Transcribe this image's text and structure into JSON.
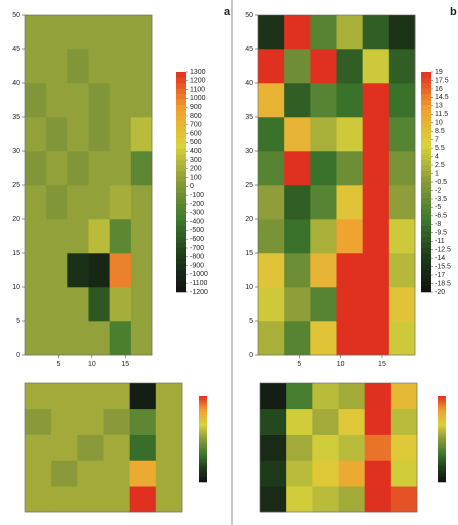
{
  "chart_data": [
    {
      "type": "heatmap",
      "label": "a",
      "xlim": [
        0,
        19
      ],
      "ylim": [
        0,
        50
      ],
      "xticks": [
        5,
        10,
        15
      ],
      "yticks": [
        0,
        5,
        10,
        15,
        20,
        25,
        30,
        35,
        40,
        45,
        50
      ],
      "zlim": [
        -1200,
        1300
      ],
      "zticks": [
        1300,
        1200,
        1100,
        1000,
        900,
        800,
        700,
        600,
        500,
        400,
        300,
        200,
        100,
        0,
        -100,
        -200,
        -300,
        -400,
        -500,
        -600,
        -700,
        -800,
        -900,
        -1000,
        -1100,
        -1200
      ],
      "colorscale": [
        "#111111",
        "#1f3d1a",
        "#3f7a2e",
        "#8a9a3a",
        "#d9d23a",
        "#f0a030",
        "#e03020"
      ],
      "z": [
        [
          100,
          100,
          100,
          100,
          -300,
          100
        ],
        [
          100,
          100,
          100,
          -600,
          200,
          100
        ],
        [
          100,
          100,
          -900,
          -1000,
          1000,
          100
        ],
        [
          100,
          100,
          100,
          300,
          -200,
          100
        ],
        [
          100,
          0,
          100,
          100,
          200,
          100
        ],
        [
          0,
          100,
          0,
          100,
          100,
          -200
        ],
        [
          100,
          0,
          100,
          0,
          100,
          300
        ],
        [
          0,
          100,
          100,
          0,
          100,
          100
        ],
        [
          100,
          100,
          0,
          100,
          100,
          100
        ],
        [
          100,
          100,
          100,
          100,
          100,
          100
        ]
      ]
    },
    {
      "type": "heatmap",
      "label": "b",
      "xlim": [
        0,
        19
      ],
      "ylim": [
        0,
        50
      ],
      "xticks": [
        5,
        10,
        15
      ],
      "yticks": [
        0,
        5,
        10,
        15,
        20,
        25,
        30,
        35,
        40,
        45,
        50
      ],
      "zlim": [
        -20,
        19
      ],
      "zticks": [
        19,
        17.5,
        16,
        14.5,
        13,
        11.5,
        10,
        8.5,
        7,
        5.5,
        4,
        2.5,
        1,
        -0.5,
        -2,
        -3.5,
        -5,
        -6.5,
        -8,
        -9.5,
        -11,
        -12.5,
        -14,
        -15.5,
        -17,
        -18.5,
        -20
      ],
      "colorscale": [
        "#111111",
        "#1f3d1a",
        "#3f7a2e",
        "#8a9a3a",
        "#d9d23a",
        "#f0a030",
        "#e03020"
      ],
      "z": [
        [
          2,
          -5,
          8,
          19,
          19,
          5
        ],
        [
          5,
          0,
          -5,
          19,
          19,
          8
        ],
        [
          8,
          -3,
          10,
          19,
          19,
          3
        ],
        [
          -2,
          -8,
          2,
          12,
          19,
          5
        ],
        [
          0,
          -10,
          -5,
          8,
          19,
          0
        ],
        [
          -5,
          19,
          -8,
          -3,
          19,
          -2
        ],
        [
          -8,
          10,
          2,
          5,
          19,
          -5
        ],
        [
          10,
          -10,
          -5,
          -8,
          19,
          -8
        ],
        [
          19,
          -3,
          19,
          -10,
          5,
          -10
        ],
        [
          -15,
          19,
          -5,
          2,
          -10,
          -15
        ]
      ]
    },
    {
      "type": "heatmap",
      "zlim": [
        -1,
        1
      ],
      "colorscale": [
        "#111111",
        "#1f3d1a",
        "#3f7a2e",
        "#8a9a3a",
        "#d9d23a",
        "#f0a030",
        "#e03020"
      ],
      "z": [
        [
          0.1,
          0.1,
          0.1,
          0.1,
          1,
          0.1
        ],
        [
          0.1,
          0,
          0.1,
          0.1,
          0.6,
          0.1
        ],
        [
          0.1,
          0.1,
          0,
          0.1,
          -0.4,
          0.1
        ],
        [
          0,
          0.1,
          0.1,
          0,
          -0.2,
          0.1
        ],
        [
          0.1,
          0.1,
          0.1,
          0.1,
          -0.9,
          0.1
        ]
      ]
    },
    {
      "type": "heatmap",
      "zlim": [
        -1,
        1
      ],
      "colorscale": [
        "#111111",
        "#1f3d1a",
        "#3f7a2e",
        "#8a9a3a",
        "#d9d23a",
        "#f0a030",
        "#e03020"
      ],
      "z": [
        [
          -0.8,
          0.3,
          0.2,
          0.1,
          1,
          0.9
        ],
        [
          -0.7,
          0.2,
          0.4,
          0.6,
          1,
          0.3
        ],
        [
          -0.8,
          0.1,
          0.3,
          0.2,
          0.8,
          0.4
        ],
        [
          -0.6,
          0.3,
          0.1,
          0.4,
          1,
          0.2
        ],
        [
          -0.9,
          -0.3,
          0.2,
          0.1,
          1,
          0.5
        ]
      ]
    }
  ]
}
